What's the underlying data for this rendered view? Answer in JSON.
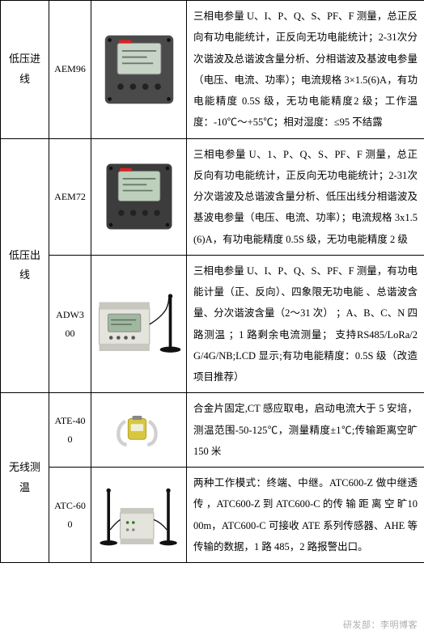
{
  "categories": [
    {
      "label": "低压进线"
    },
    {
      "label": "低压出线"
    },
    {
      "label": "无线测温"
    }
  ],
  "rows": [
    {
      "model": "AEM96",
      "desc": "三相电参量 U、I、P、Q、S、PF、F 测量，总正反向有功电能统计，正反向无功电能统计；2-31次分次谐波及总谐波含量分析、分相谐波及基波电参量（电压、电流、功率）；电流规格 3×1.5(6)A，有功电能精度 0.5S 级，无功电能精度2 级；工作温度：-10℃～+55℃；相对湿度：≤95 不结露",
      "device": {
        "shape": "square-meter",
        "body": "#4a4a4a",
        "screen": "#c8d4c8",
        "brand": "#e02020"
      }
    },
    {
      "model": "AEM72",
      "desc": "三相电参量 U、1、P、Q、S、PF、F 测量，总正反向有功电能统计，正反向无功电能统计；2-31次分次谐波及总谐波含量分析、低压出线分相谐波及基波电参量（电压、电流、功率）；电流规格 3x1.5(6)A，有功电能精度 0.5S 级，无功电能精度 2 级",
      "device": {
        "shape": "square-meter",
        "body": "#3c3c3c",
        "screen": "#bcd0bc",
        "brand": "#e02020"
      }
    },
    {
      "model": "ADW300",
      "desc": "三相电参量 U、I、P、Q、S、PF、F 测量，有功电能计量（正、反向）、四象限无功电能 、总谐波含量、分次谐波含量（2～31 次） ；A、B、C、N 四路测温 ；1 路剩余电流测量； 支持RS485/LoRa/2G/4G/NB;LCD 显示;有功电能精度：0.5S 级（改造项目推荐）",
      "device": {
        "shape": "din-rail",
        "body": "#e4e4dc",
        "screen": "#9fb89f",
        "antenna": "#111"
      }
    },
    {
      "model": "ATE-400",
      "desc": "合金片固定,CT 感应取电，启动电流大于 5 安培，测温范围-50-125℃，测量精度±1℃;传输距离空旷 150 米",
      "device": {
        "shape": "clip-sensor",
        "body": "#d8c840",
        "strap": "#d0d0d0"
      }
    },
    {
      "model": "ATC-600",
      "desc": "两种工作模式：终端、中继。ATC600-Z 做中继透传 ，ATC600-Z 到 ATC600-C 的传 输 距 离 空 旷1000m，ATC600-C 可接收 ATE 系列传感器、AHE 等传输的数据，1 路 485，2 路报警出口。",
      "device": {
        "shape": "gateway",
        "body": "#e4e4dc",
        "antenna": "#111"
      }
    }
  ],
  "watermark": "研发部：李明博客"
}
